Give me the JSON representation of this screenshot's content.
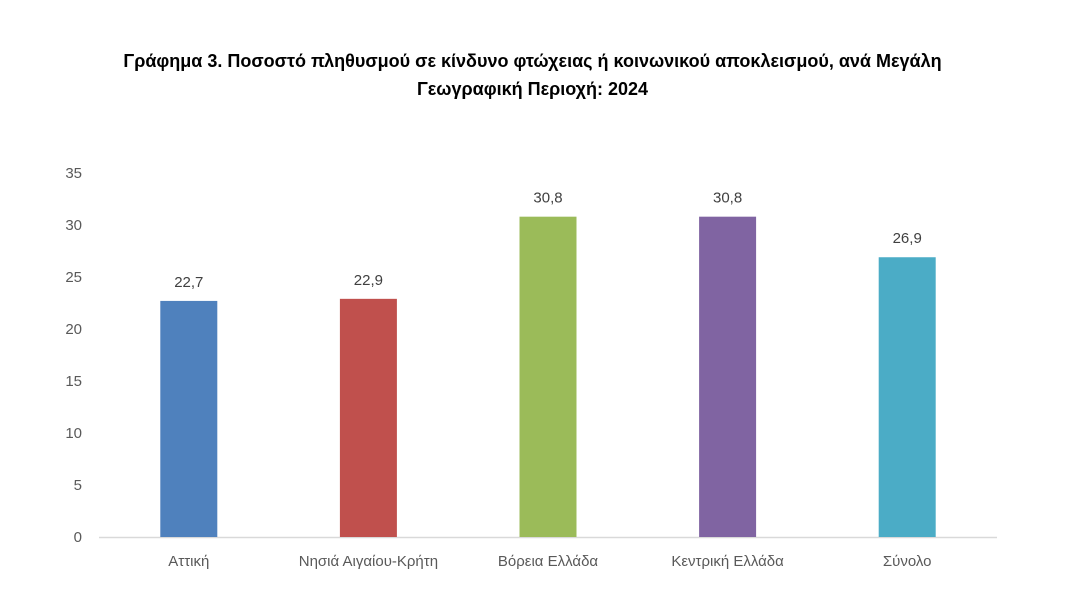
{
  "chart_data": {
    "type": "bar",
    "title_lines": [
      "Γράφημα 3. Ποσοστό πληθυσμού σε κίνδυνο φτώχειας ή κοινωνικού αποκλεισμού, ανά  Μεγάλη",
      "Γεωγραφική Περιοχή: 2024"
    ],
    "categories": [
      "Αττική",
      "Νησιά Αιγαίου-Κρήτη",
      "Βόρεια Ελλάδα",
      "Κεντρική Ελλάδα",
      "Σύνολο"
    ],
    "values": [
      22.7,
      22.9,
      30.8,
      30.8,
      26.9
    ],
    "value_labels": [
      "22,7",
      "22,9",
      "30,8",
      "30,8",
      "26,9"
    ],
    "colors": [
      "#4F81BD",
      "#C0504D",
      "#9BBB59",
      "#8064A2",
      "#4BACC6"
    ],
    "ylim": [
      0,
      35
    ],
    "yticks": [
      0,
      5,
      10,
      15,
      20,
      25,
      30,
      35
    ],
    "grid": false,
    "legend": "none",
    "xlabel": "",
    "ylabel": ""
  }
}
